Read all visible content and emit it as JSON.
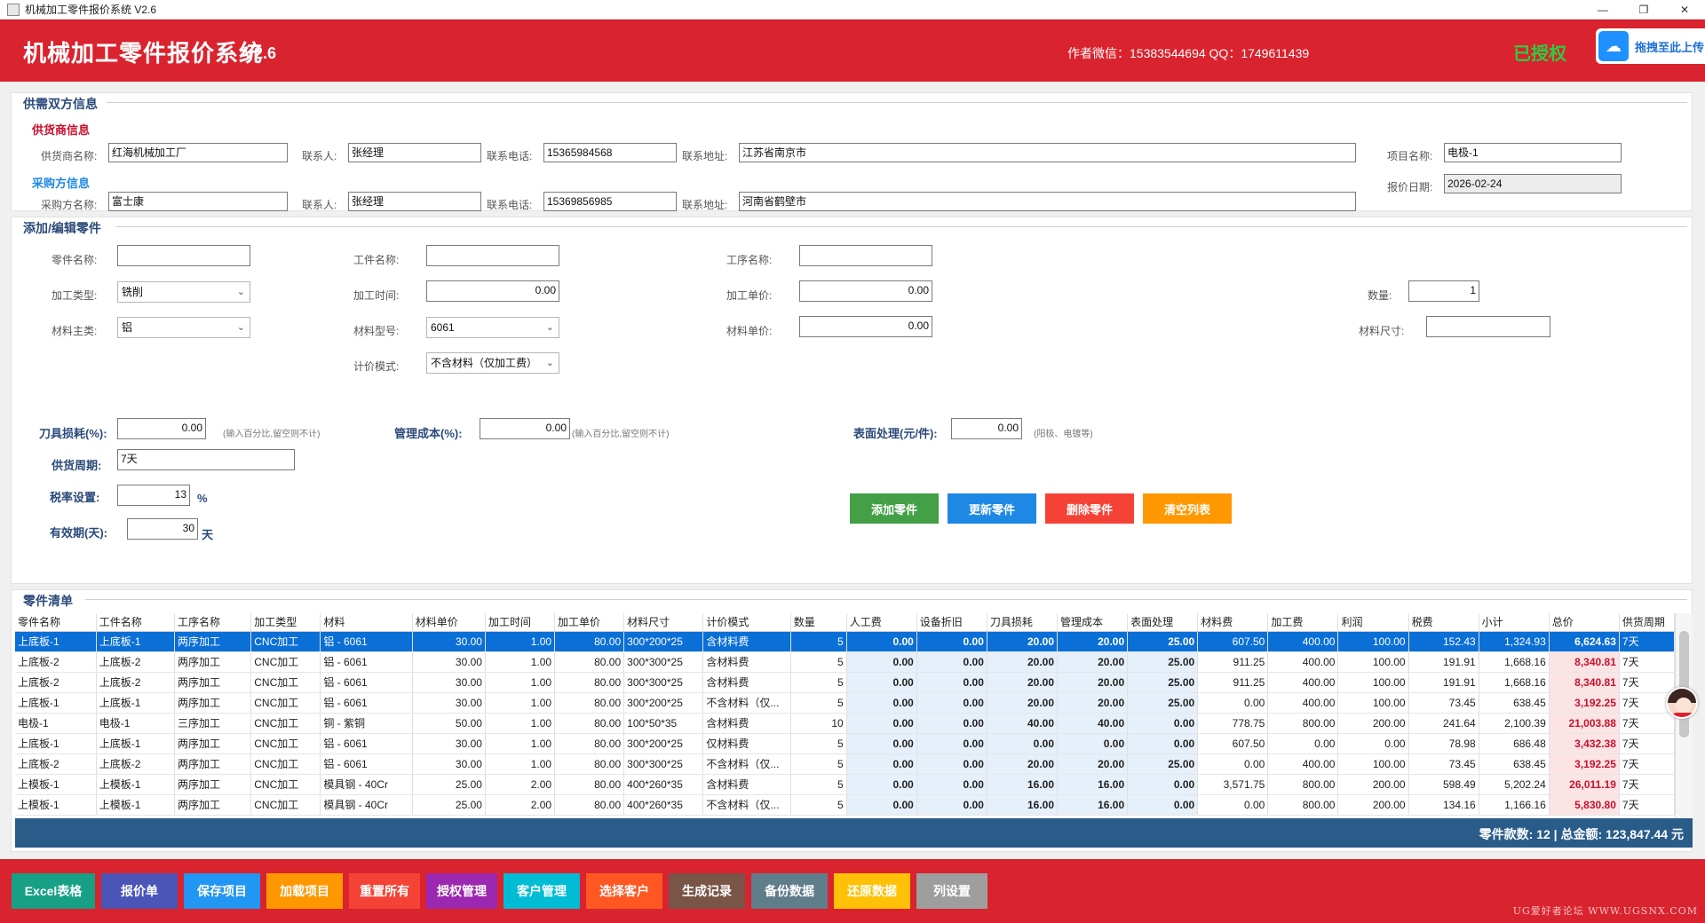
{
  "window": {
    "title": "机械加工零件报价系统 V2.6",
    "min": "—",
    "max": "❐",
    "close": "✕"
  },
  "header": {
    "title": "机械加工零件报价系统",
    "version": "V2.6",
    "author": "作者微信：15383544694  QQ：1749611439",
    "license": "已授权",
    "upload_label": "拖拽至此上传",
    "upload_icon": "cloud-icon"
  },
  "supply": {
    "group_title": "供需双方信息",
    "supplier_title": "供货商信息",
    "buyer_title": "采购方信息",
    "supplier_name_label": "供货商名称:",
    "supplier_name": "红海机械加工厂",
    "contact_label": "联系人:",
    "supplier_contact": "张经理",
    "phone_label": "联系电话:",
    "supplier_phone": "15365984568",
    "address_label": "联系地址:",
    "supplier_address": "江苏省南京市",
    "buyer_name_label": "采购方名称:",
    "buyer_name": "富士康",
    "buyer_contact": "张经理",
    "buyer_phone": "15369856985",
    "buyer_address": "河南省鹤壁市",
    "project_label": "项目名称:",
    "project_name": "电极-1",
    "date_label": "报价日期:",
    "quote_date": "2026-02-24"
  },
  "edit": {
    "group_title": "添加/编辑零件",
    "part_name_label": "零件名称:",
    "part_name": "",
    "workpiece_label": "工件名称:",
    "workpiece": "",
    "process_label": "工序名称:",
    "process": "",
    "proc_type_label": "加工类型:",
    "proc_type": "铣削",
    "proc_time_label": "加工时间:",
    "proc_time": "0.00",
    "proc_price_label": "加工单价:",
    "proc_price": "0.00",
    "qty_label": "数量:",
    "qty": "1",
    "material_label": "材料主类:",
    "material": "铝",
    "material_model_label": "材料型号:",
    "material_model": "6061",
    "material_price_label": "材料单价:",
    "material_price": "0.00",
    "material_size_label": "材料尺寸:",
    "material_size": "",
    "pricing_label": "计价模式:",
    "pricing": "不含材料（仅加工费）",
    "tool_loss_label": "刀具损耗(%):",
    "tool_loss": "0.00",
    "tool_hint": "(输入百分比,留空则不计)",
    "mgmt_label": "管理成本(%):",
    "mgmt": "0.00",
    "mgmt_hint": "(输入百分比,留空则不计)",
    "surface_label": "表面处理(元/件):",
    "surface": "0.00",
    "surface_hint": "(阳极、电镀等)",
    "cycle_label": "供货周期:",
    "cycle": "7天",
    "tax_label": "税率设置:",
    "tax": "13",
    "tax_unit": "%",
    "valid_label": "有效期(天):",
    "valid": "30",
    "valid_unit": "天",
    "btn_add": "添加零件",
    "btn_update": "更新零件",
    "btn_delete": "删除零件",
    "btn_clear": "清空列表"
  },
  "parts": {
    "group_title": "零件清单",
    "columns": [
      "零件名称",
      "工件名称",
      "工序名称",
      "加工类型",
      "材料",
      "材料单价",
      "加工时间",
      "加工单价",
      "材料尺寸",
      "计价模式",
      "数量",
      "人工费",
      "设备折旧",
      "刀具损耗",
      "管理成本",
      "表面处理",
      "材料费",
      "加工费",
      "利润",
      "税费",
      "小计",
      "总价",
      "供货周期"
    ],
    "rows": [
      [
        "上底板-1",
        "上底板-1",
        "两序加工",
        "CNC加工",
        "铝 - 6061",
        "30.00",
        "1.00",
        "80.00",
        "300*200*25",
        "含材料费",
        "5",
        "0.00",
        "0.00",
        "20.00",
        "20.00",
        "25.00",
        "607.50",
        "400.00",
        "100.00",
        "152.43",
        "1,324.93",
        "6,624.63",
        "7天"
      ],
      [
        "上底板-2",
        "上底板-2",
        "两序加工",
        "CNC加工",
        "铝 - 6061",
        "30.00",
        "1.00",
        "80.00",
        "300*300*25",
        "含材料费",
        "5",
        "0.00",
        "0.00",
        "20.00",
        "20.00",
        "25.00",
        "911.25",
        "400.00",
        "100.00",
        "191.91",
        "1,668.16",
        "8,340.81",
        "7天"
      ],
      [
        "上底板-2",
        "上底板-2",
        "两序加工",
        "CNC加工",
        "铝 - 6061",
        "30.00",
        "1.00",
        "80.00",
        "300*300*25",
        "含材料费",
        "5",
        "0.00",
        "0.00",
        "20.00",
        "20.00",
        "25.00",
        "911.25",
        "400.00",
        "100.00",
        "191.91",
        "1,668.16",
        "8,340.81",
        "7天"
      ],
      [
        "上底板-1",
        "上底板-1",
        "两序加工",
        "CNC加工",
        "铝 - 6061",
        "30.00",
        "1.00",
        "80.00",
        "300*200*25",
        "不含材料（仅...",
        "5",
        "0.00",
        "0.00",
        "20.00",
        "20.00",
        "25.00",
        "0.00",
        "400.00",
        "100.00",
        "73.45",
        "638.45",
        "3,192.25",
        "7天"
      ],
      [
        "电极-1",
        "电极-1",
        "三序加工",
        "CNC加工",
        "铜 - 紫铜",
        "50.00",
        "1.00",
        "80.00",
        "100*50*35",
        "含材料费",
        "10",
        "0.00",
        "0.00",
        "40.00",
        "40.00",
        "0.00",
        "778.75",
        "800.00",
        "200.00",
        "241.64",
        "2,100.39",
        "21,003.88",
        "7天"
      ],
      [
        "上底板-1",
        "上底板-1",
        "两序加工",
        "CNC加工",
        "铝 - 6061",
        "30.00",
        "1.00",
        "80.00",
        "300*200*25",
        "仅材料费",
        "5",
        "0.00",
        "0.00",
        "0.00",
        "0.00",
        "0.00",
        "607.50",
        "0.00",
        "0.00",
        "78.98",
        "686.48",
        "3,432.38",
        "7天"
      ],
      [
        "上底板-2",
        "上底板-2",
        "两序加工",
        "CNC加工",
        "铝 - 6061",
        "30.00",
        "1.00",
        "80.00",
        "300*300*25",
        "不含材料（仅...",
        "5",
        "0.00",
        "0.00",
        "20.00",
        "20.00",
        "25.00",
        "0.00",
        "400.00",
        "100.00",
        "73.45",
        "638.45",
        "3,192.25",
        "7天"
      ],
      [
        "上模板-1",
        "上模板-1",
        "两序加工",
        "CNC加工",
        "模具钢 - 40Cr",
        "25.00",
        "2.00",
        "80.00",
        "400*260*35",
        "含材料费",
        "5",
        "0.00",
        "0.00",
        "16.00",
        "16.00",
        "0.00",
        "3,571.75",
        "800.00",
        "200.00",
        "598.49",
        "5,202.24",
        "26,011.19",
        "7天"
      ],
      [
        "上模板-1",
        "上模板-1",
        "两序加工",
        "CNC加工",
        "模具钢 - 40Cr",
        "25.00",
        "2.00",
        "80.00",
        "400*260*35",
        "不含材料（仅...",
        "5",
        "0.00",
        "0.00",
        "16.00",
        "16.00",
        "0.00",
        "0.00",
        "800.00",
        "200.00",
        "134.16",
        "1,166.16",
        "5,830.80",
        "7天"
      ]
    ],
    "footer": "零件款数: 12 | 总金额: 123,847.44 元"
  },
  "bottom": {
    "buttons": [
      "Excel表格",
      "报价单",
      "保存项目",
      "加载项目",
      "重置所有",
      "授权管理",
      "客户管理",
      "选择客户",
      "生成记录",
      "备份数据",
      "还原数据",
      "列设置"
    ],
    "colors": [
      "#17a085",
      "#4b55b8",
      "#2196f3",
      "#ff9800",
      "#f44336",
      "#9c27b0",
      "#00bcd4",
      "#ff5722",
      "#795548",
      "#607d8b",
      "#ffc107",
      "#9e9e9e"
    ],
    "watermark": "UG爱好者论坛 WWW.UGSNX.COM"
  },
  "colors": {
    "header": "#d9232e",
    "accent_blue": "#0a6fd6",
    "license_green": "#2ecc40"
  }
}
